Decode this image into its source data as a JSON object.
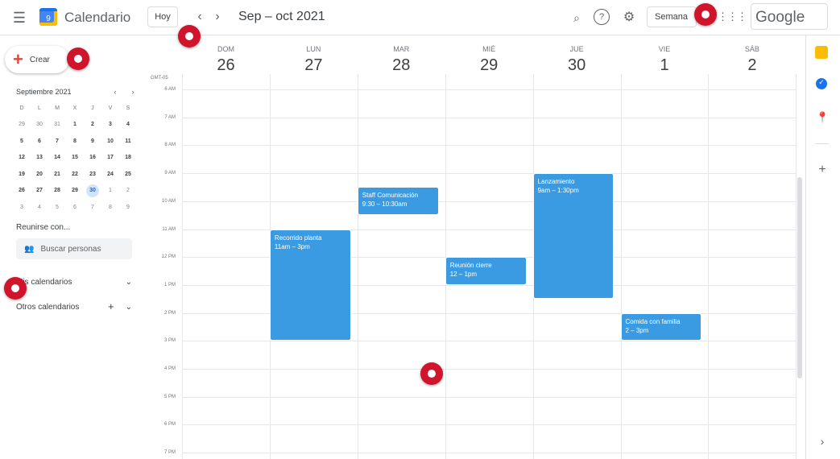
{
  "header": {
    "app_name": "Calendario",
    "logo_day": "9",
    "today_label": "Hoy",
    "date_range": "Sep – oct 2021",
    "view_label": "Semana",
    "brand": "Google"
  },
  "sidebar": {
    "create_label": "Crear",
    "mini_calendar": {
      "title": "Septiembre 2021",
      "weekdays": [
        "D",
        "L",
        "M",
        "X",
        "J",
        "V",
        "S"
      ],
      "weeks": [
        [
          "29",
          "30",
          "31",
          "1",
          "2",
          "3",
          "4"
        ],
        [
          "5",
          "6",
          "7",
          "8",
          "9",
          "10",
          "11"
        ],
        [
          "12",
          "13",
          "14",
          "15",
          "16",
          "17",
          "18"
        ],
        [
          "19",
          "20",
          "21",
          "22",
          "23",
          "24",
          "25"
        ],
        [
          "26",
          "27",
          "28",
          "29",
          "30",
          "1",
          "2"
        ],
        [
          "3",
          "4",
          "5",
          "6",
          "7",
          "8",
          "9"
        ]
      ],
      "today": "30"
    },
    "meet_title": "Reunirse con...",
    "search_people_placeholder": "Buscar personas",
    "my_calendars": "Mis calendarios",
    "other_calendars": "Otros calendarios"
  },
  "week": {
    "timezone": "GMT-05",
    "days": [
      {
        "name": "DOM",
        "date": "26"
      },
      {
        "name": "LUN",
        "date": "27"
      },
      {
        "name": "MAR",
        "date": "28"
      },
      {
        "name": "MIÉ",
        "date": "29"
      },
      {
        "name": "JUE",
        "date": "30"
      },
      {
        "name": "VIE",
        "date": "1"
      },
      {
        "name": "SÁB",
        "date": "2"
      }
    ],
    "hours": [
      "6 AM",
      "7 AM",
      "8 AM",
      "9 AM",
      "10 AM",
      "11 AM",
      "12 PM",
      "1 PM",
      "2 PM",
      "3 PM",
      "4 PM",
      "5 PM",
      "6 PM",
      "7 PM"
    ]
  },
  "events": [
    {
      "title": "Recorrido planta",
      "time": "11am – 3pm",
      "day": 1,
      "start": 11,
      "end": 15
    },
    {
      "title": "Staff Comunicación",
      "time": "9:30 – 10:30am",
      "day": 2,
      "start": 9.5,
      "end": 10.5
    },
    {
      "title": "Reunión cierre",
      "time": "12 – 1pm",
      "day": 3,
      "start": 12,
      "end": 13
    },
    {
      "title": "Lanzamiento",
      "time": "9am – 1:30pm",
      "day": 4,
      "start": 9,
      "end": 13.5
    },
    {
      "title": "Comida con familia",
      "time": "2 – 3pm",
      "day": 5,
      "start": 14,
      "end": 15
    }
  ],
  "colors": {
    "event": "#3a9be3",
    "marker": "#d0142c"
  }
}
